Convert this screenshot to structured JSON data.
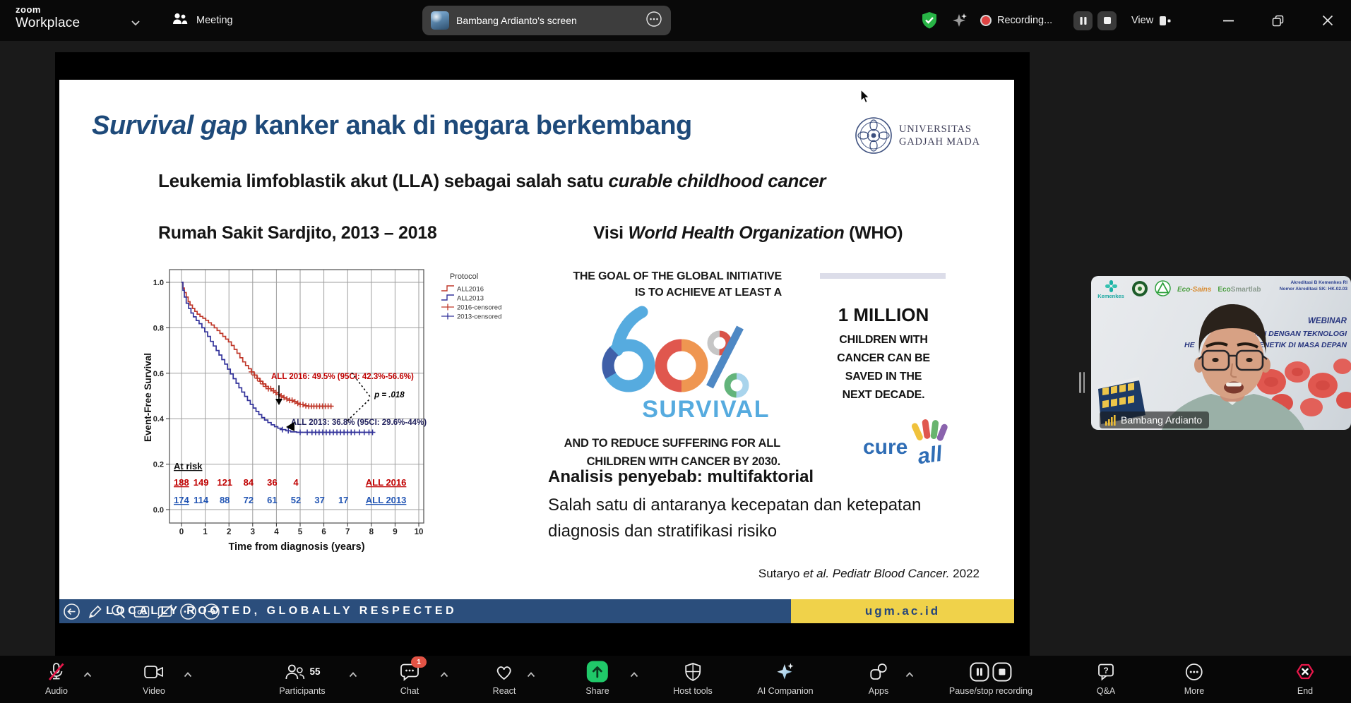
{
  "window": {
    "brand_top": "zoom",
    "brand_bottom": "Workplace",
    "meeting_tab": "Meeting",
    "screen_tab": "Bambang Ardianto's screen",
    "recording_label": "Recording...",
    "view_label": "View"
  },
  "slide": {
    "title_italic": "Survival gap",
    "title_rest": " kanker anak di negara berkembang",
    "logo": {
      "line1": "UNIVERSITAS",
      "line2": "GADJAH MADA"
    },
    "subtitle_prefix": "Leukemia limfoblastik akut (LLA) sebagai salah satu ",
    "subtitle_italic": "curable childhood cancer",
    "left_heading": "Rumah Sakit Sardjito, 2013 – 2018",
    "right_heading_prefix": "Visi ",
    "right_heading_italic": "World Health Organization",
    "right_heading_suffix": " (WHO)",
    "who": {
      "goal_line1": "THE GOAL OF THE GLOBAL INITIATIVE",
      "goal_line2": "IS TO ACHIEVE AT LEAST A",
      "percent": "60%",
      "percent_label": "SURVIVAL",
      "reduce_line1": "AND TO REDUCE SUFFERING FOR ALL",
      "reduce_line2": "CHILDREN WITH CANCER BY 2030.",
      "million_title": "1 MILLION",
      "million_line1": "CHILDREN WITH",
      "million_line2": "CANCER CAN BE",
      "million_line3": "SAVED IN THE",
      "million_line4": "NEXT DECADE.",
      "cureall_cure": "cure",
      "cureall_all": "all"
    },
    "analysis_heading": "Analisis penyebab: multifaktorial",
    "analysis_line1": "Salah satu di antaranya kecepatan dan ketepatan",
    "analysis_line2": "diagnosis dan stratifikasi risiko",
    "citation_prefix": "Sutaryo ",
    "citation_italic": "et al. Pediatr Blood Cancer.",
    "citation_suffix": " 2022",
    "footer_text": "LOCALLY ROOTED, GLOBALLY RESPECTED",
    "footer_url": "ugm.ac.id"
  },
  "chart_data": {
    "type": "line",
    "subtype": "kaplan-meier-step",
    "xlabel": "Time from diagnosis (years)",
    "ylabel": "Event-Free Survival",
    "xlim": [
      0,
      10
    ],
    "ylim": [
      0.0,
      1.0
    ],
    "xticks": [
      0,
      1,
      2,
      3,
      4,
      5,
      6,
      7,
      8,
      9,
      10
    ],
    "yticks": [
      0.0,
      0.2,
      0.4,
      0.6,
      0.8,
      1.0
    ],
    "grid": true,
    "legend_title": "Protocol",
    "legend_position": "right-top-outside",
    "series": [
      {
        "name": "ALL2016",
        "type": "step",
        "color": "#c0392b",
        "points": [
          [
            0,
            1.0
          ],
          [
            0.06,
            0.975
          ],
          [
            0.12,
            0.955
          ],
          [
            0.2,
            0.935
          ],
          [
            0.28,
            0.915
          ],
          [
            0.36,
            0.9
          ],
          [
            0.46,
            0.885
          ],
          [
            0.56,
            0.872
          ],
          [
            0.66,
            0.86
          ],
          [
            0.78,
            0.85
          ],
          [
            0.9,
            0.842
          ],
          [
            1.02,
            0.833
          ],
          [
            1.14,
            0.822
          ],
          [
            1.26,
            0.812
          ],
          [
            1.38,
            0.8
          ],
          [
            1.5,
            0.788
          ],
          [
            1.62,
            0.775
          ],
          [
            1.74,
            0.762
          ],
          [
            1.86,
            0.75
          ],
          [
            1.98,
            0.738
          ],
          [
            2.1,
            0.722
          ],
          [
            2.22,
            0.705
          ],
          [
            2.34,
            0.688
          ],
          [
            2.46,
            0.668
          ],
          [
            2.58,
            0.65
          ],
          [
            2.7,
            0.634
          ],
          [
            2.82,
            0.62
          ],
          [
            2.94,
            0.606
          ],
          [
            3.06,
            0.592
          ],
          [
            3.18,
            0.578
          ],
          [
            3.3,
            0.565
          ],
          [
            3.42,
            0.553
          ],
          [
            3.54,
            0.542
          ],
          [
            3.66,
            0.532
          ],
          [
            3.78,
            0.523
          ],
          [
            3.9,
            0.515
          ],
          [
            4.02,
            0.507
          ],
          [
            4.14,
            0.5
          ],
          [
            4.28,
            0.493
          ],
          [
            4.42,
            0.487
          ],
          [
            4.56,
            0.481
          ],
          [
            4.7,
            0.475
          ],
          [
            4.85,
            0.468
          ],
          [
            5.0,
            0.462
          ],
          [
            5.15,
            0.457
          ],
          [
            5.3,
            0.455
          ],
          [
            6.35,
            0.455
          ]
        ]
      },
      {
        "name": "ALL2013",
        "type": "step",
        "color": "#33339b",
        "points": [
          [
            0,
            1.0
          ],
          [
            0.06,
            0.965
          ],
          [
            0.12,
            0.935
          ],
          [
            0.2,
            0.908
          ],
          [
            0.3,
            0.885
          ],
          [
            0.4,
            0.865
          ],
          [
            0.5,
            0.848
          ],
          [
            0.62,
            0.832
          ],
          [
            0.74,
            0.818
          ],
          [
            0.86,
            0.8
          ],
          [
            0.98,
            0.782
          ],
          [
            1.1,
            0.762
          ],
          [
            1.22,
            0.74
          ],
          [
            1.34,
            0.72
          ],
          [
            1.46,
            0.7
          ],
          [
            1.58,
            0.68
          ],
          [
            1.7,
            0.66
          ],
          [
            1.82,
            0.64
          ],
          [
            1.94,
            0.618
          ],
          [
            2.06,
            0.597
          ],
          [
            2.18,
            0.576
          ],
          [
            2.3,
            0.556
          ],
          [
            2.42,
            0.536
          ],
          [
            2.54,
            0.517
          ],
          [
            2.66,
            0.498
          ],
          [
            2.78,
            0.48
          ],
          [
            2.9,
            0.463
          ],
          [
            3.02,
            0.447
          ],
          [
            3.14,
            0.432
          ],
          [
            3.26,
            0.418
          ],
          [
            3.38,
            0.405
          ],
          [
            3.5,
            0.394
          ],
          [
            3.64,
            0.383
          ],
          [
            3.78,
            0.373
          ],
          [
            3.92,
            0.365
          ],
          [
            4.06,
            0.358
          ],
          [
            4.2,
            0.352
          ],
          [
            4.4,
            0.347
          ],
          [
            4.6,
            0.342
          ],
          [
            4.85,
            0.34
          ],
          [
            8.1,
            0.34
          ]
        ]
      },
      {
        "name": "2016-censored",
        "type": "censor",
        "source": "ALL2016",
        "color": "#c0392b",
        "x": [
          2.95,
          3.08,
          3.2,
          3.32,
          3.44,
          3.56,
          3.66,
          3.76,
          3.88,
          3.98,
          4.1,
          4.2,
          4.32,
          4.44,
          4.56,
          4.66,
          4.78,
          4.9,
          5.0,
          5.12,
          5.24,
          5.36,
          5.48,
          5.58,
          5.7,
          5.82,
          5.94,
          6.06,
          6.18,
          6.3
        ]
      },
      {
        "name": "2013-censored",
        "type": "censor",
        "source": "ALL2013",
        "color": "#33339b",
        "x": [
          4.25,
          4.5,
          5.0,
          5.3,
          5.5,
          5.65,
          5.8,
          5.95,
          6.1,
          6.25,
          6.4,
          6.55,
          6.7,
          6.85,
          7.0,
          7.15,
          7.3,
          7.5,
          7.7,
          7.9,
          8.05
        ]
      }
    ],
    "annotations": [
      {
        "text": "ALL 2016: 49.5% (95CI: 42.3%-56.6%)",
        "color": "#c00000",
        "x": 3.78,
        "y": 0.575,
        "italic": false
      },
      {
        "text": "ALL 2013: 36.8% (95CI: 29.6%-44%)",
        "color": "#23235f",
        "x": 4.61,
        "y": 0.373,
        "italic": false
      },
      {
        "text": "p = .018",
        "color": "#000000",
        "x": 8.13,
        "y": 0.494,
        "italic": true
      }
    ],
    "at_risk": {
      "label": "At risk",
      "rows": [
        {
          "name": "ALL 2016",
          "color": "#c00000",
          "values": [
            188,
            149,
            121,
            84,
            36,
            4
          ]
        },
        {
          "name": "ALL 2013",
          "color": "#2356b4",
          "values": [
            174,
            114,
            88,
            72,
            61,
            52,
            37,
            17
          ]
        }
      ]
    }
  },
  "video": {
    "name": "Bambang Ardianto",
    "logos": {
      "kemenkes": "Kemenkes",
      "ecosains_green": "Eco",
      "ecosains_orange": "-Sains",
      "ecosmartlab_green": "Eco",
      "ecosmartlab_gray": "Smartlab"
    },
    "accreditation_line1": "Akreditasi B Kemenkes RI",
    "accreditation_line2": "Nomor Akreditasi SK: HK.02.03",
    "banner_line1": "WEBINAR",
    "banner_line2": "ARA DINI DENGAN TEKNOLOGI",
    "banner_line3_left": "HE",
    "banner_line3_right": "SAN GENETIK DI MASA DEPAN"
  },
  "glyphs": {
    "cc": "CC",
    "question": "?"
  },
  "toolbar": {
    "items": [
      {
        "label": "Audio"
      },
      {
        "label": "Video"
      },
      {
        "label": "Participants",
        "count": "55"
      },
      {
        "label": "Chat",
        "badge": "1"
      },
      {
        "label": "React"
      },
      {
        "label": "Share"
      },
      {
        "label": "Host tools"
      },
      {
        "label": "AI Companion"
      },
      {
        "label": "Apps"
      },
      {
        "label": "Pause/stop recording"
      },
      {
        "label": "Q&A"
      },
      {
        "label": "More"
      },
      {
        "label": "End"
      }
    ]
  },
  "colors": {
    "slide_blue": "#1e4a7a",
    "footer_blue": "#2b4e7c",
    "footer_yellow": "#f0d24a",
    "survival_blue": "#56abdf",
    "chart_red": "#c0392b",
    "chart_blue": "#33339b",
    "share_green": "#20c969",
    "end_red": "#e8174a",
    "badge_red": "#e25345",
    "recording_red": "#de4343",
    "shield_green": "#28b446"
  }
}
